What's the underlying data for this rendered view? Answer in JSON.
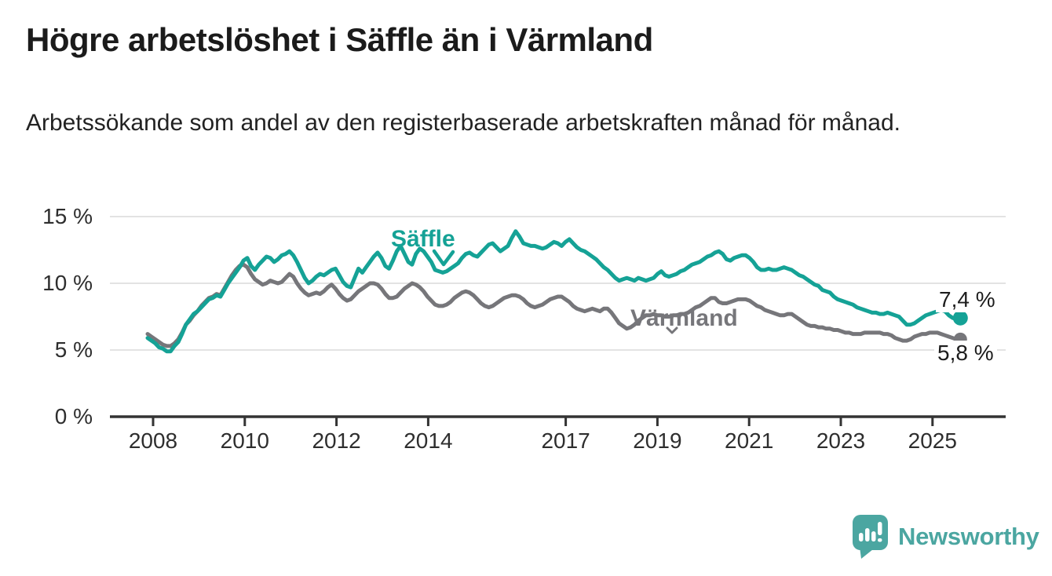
{
  "header": {
    "title": "Högre arbetslöshet i Säffle än i Värmland",
    "subtitle": "Arbetssökande som andel av den registerbaserade arbetskraften månad för månad."
  },
  "chart_data": {
    "type": "line",
    "unit": "%",
    "x_start_year": 2008,
    "x_start_month": 1,
    "x_interval": "monthly",
    "x_end_label": "2025",
    "ylim": [
      0,
      15.5
    ],
    "grid": "horizontal",
    "legend_position": "inline-labels",
    "y_ticks": [
      {
        "value": 0,
        "label": "0 %"
      },
      {
        "value": 5,
        "label": "5 %"
      },
      {
        "value": 10,
        "label": "10 %"
      },
      {
        "value": 15,
        "label": "15 %"
      }
    ],
    "x_ticks": [
      {
        "year": 2008,
        "label": "2008"
      },
      {
        "year": 2010,
        "label": "2010"
      },
      {
        "year": 2012,
        "label": "2012"
      },
      {
        "year": 2014,
        "label": "2014"
      },
      {
        "year": 2017,
        "label": "2017"
      },
      {
        "year": 2019,
        "label": "2019"
      },
      {
        "year": 2021,
        "label": "2021"
      },
      {
        "year": 2023,
        "label": "2023"
      },
      {
        "year": 2025,
        "label": "2025"
      }
    ],
    "series": [
      {
        "name": "Säffle",
        "color": "#15a296",
        "end_value": 7.4,
        "end_label": "7,4 %",
        "dot_radius": 9.5,
        "values": [
          5.9,
          5.7,
          5.5,
          5.2,
          5.1,
          4.9,
          4.9,
          5.3,
          5.6,
          6.2,
          6.9,
          7.3,
          7.7,
          7.9,
          8.2,
          8.5,
          8.8,
          8.9,
          9.1,
          9.0,
          9.5,
          10.0,
          10.4,
          10.8,
          11.2,
          11.7,
          11.9,
          11.3,
          11.0,
          11.4,
          11.7,
          12.0,
          11.9,
          11.6,
          11.8,
          12.1,
          12.2,
          12.4,
          12.1,
          11.6,
          11.0,
          10.4,
          10.0,
          10.2,
          10.5,
          10.7,
          10.6,
          10.8,
          11.0,
          11.1,
          10.6,
          10.1,
          9.8,
          9.7,
          10.4,
          11.1,
          10.8,
          11.2,
          11.6,
          12.0,
          12.3,
          11.9,
          11.3,
          11.1,
          11.7,
          12.4,
          12.8,
          12.2,
          11.6,
          11.4,
          12.2,
          12.6,
          12.4,
          12.0,
          11.6,
          11.0,
          10.9,
          10.8,
          10.9,
          11.1,
          11.3,
          11.5,
          11.9,
          12.2,
          12.3,
          12.1,
          12.0,
          12.3,
          12.6,
          12.9,
          13.0,
          12.7,
          12.4,
          12.6,
          12.8,
          13.4,
          13.9,
          13.5,
          13.0,
          12.9,
          12.8,
          12.8,
          12.7,
          12.6,
          12.7,
          12.9,
          13.1,
          13.0,
          12.8,
          13.1,
          13.3,
          13.0,
          12.7,
          12.5,
          12.4,
          12.2,
          12.0,
          11.8,
          11.5,
          11.2,
          11.0,
          10.7,
          10.4,
          10.2,
          10.3,
          10.4,
          10.3,
          10.2,
          10.4,
          10.3,
          10.2,
          10.3,
          10.4,
          10.7,
          10.9,
          10.6,
          10.5,
          10.6,
          10.7,
          10.9,
          11.0,
          11.2,
          11.4,
          11.5,
          11.6,
          11.8,
          12.0,
          12.1,
          12.3,
          12.4,
          12.2,
          11.8,
          11.7,
          11.9,
          12.0,
          12.1,
          12.1,
          11.9,
          11.6,
          11.2,
          11.0,
          11.0,
          11.1,
          11.0,
          11.0,
          11.1,
          11.2,
          11.1,
          11.0,
          10.8,
          10.6,
          10.5,
          10.3,
          10.1,
          9.9,
          9.8,
          9.5,
          9.4,
          9.3,
          9.0,
          8.8,
          8.7,
          8.6,
          8.5,
          8.4,
          8.2,
          8.1,
          8.0,
          7.9,
          7.8,
          7.8,
          7.7,
          7.7,
          7.8,
          7.7,
          7.6,
          7.5,
          7.2,
          6.9,
          6.9,
          7.0,
          7.2,
          7.4,
          7.6,
          7.7,
          7.8,
          7.9,
          8.0,
          7.9,
          7.6,
          7.4,
          7.3,
          7.4
        ]
      },
      {
        "name": "Värmland",
        "color": "#76767a",
        "end_value": 5.8,
        "end_label": "5,8 %",
        "dot_radius": 8.5,
        "values": [
          6.2,
          6.0,
          5.8,
          5.6,
          5.4,
          5.3,
          5.3,
          5.5,
          5.8,
          6.3,
          6.9,
          7.2,
          7.6,
          7.9,
          8.3,
          8.6,
          8.9,
          9.0,
          9.2,
          9.1,
          9.6,
          10.1,
          10.6,
          11.0,
          11.3,
          11.4,
          11.2,
          10.7,
          10.3,
          10.1,
          9.9,
          10.0,
          10.2,
          10.1,
          10.0,
          10.1,
          10.4,
          10.7,
          10.5,
          10.0,
          9.6,
          9.3,
          9.1,
          9.2,
          9.3,
          9.2,
          9.4,
          9.7,
          9.9,
          9.6,
          9.2,
          8.9,
          8.7,
          8.8,
          9.1,
          9.4,
          9.6,
          9.8,
          10.0,
          10.0,
          9.9,
          9.6,
          9.2,
          8.9,
          8.9,
          9.0,
          9.3,
          9.6,
          9.8,
          10.0,
          9.9,
          9.7,
          9.4,
          9.0,
          8.7,
          8.4,
          8.3,
          8.3,
          8.4,
          8.6,
          8.9,
          9.1,
          9.3,
          9.4,
          9.3,
          9.1,
          8.8,
          8.5,
          8.3,
          8.2,
          8.3,
          8.5,
          8.7,
          8.9,
          9.0,
          9.1,
          9.1,
          9.0,
          8.8,
          8.5,
          8.3,
          8.2,
          8.3,
          8.4,
          8.6,
          8.8,
          8.9,
          9.0,
          9.0,
          8.8,
          8.6,
          8.3,
          8.1,
          8.0,
          7.9,
          8.0,
          8.1,
          8.0,
          7.9,
          8.1,
          8.1,
          7.8,
          7.4,
          7.0,
          6.8,
          6.6,
          6.7,
          6.9,
          7.2,
          7.4,
          7.6,
          7.6,
          7.7,
          7.6,
          7.6,
          7.5,
          7.5,
          7.6,
          7.6,
          7.7,
          7.7,
          7.8,
          8.0,
          8.2,
          8.3,
          8.5,
          8.7,
          8.9,
          8.9,
          8.6,
          8.5,
          8.5,
          8.6,
          8.7,
          8.8,
          8.8,
          8.8,
          8.7,
          8.5,
          8.3,
          8.2,
          8.0,
          7.9,
          7.8,
          7.7,
          7.6,
          7.6,
          7.7,
          7.7,
          7.5,
          7.3,
          7.1,
          6.9,
          6.8,
          6.8,
          6.7,
          6.7,
          6.6,
          6.6,
          6.5,
          6.5,
          6.4,
          6.3,
          6.3,
          6.2,
          6.2,
          6.2,
          6.3,
          6.3,
          6.3,
          6.3,
          6.3,
          6.2,
          6.2,
          6.1,
          5.9,
          5.8,
          5.7,
          5.7,
          5.8,
          6.0,
          6.1,
          6.2,
          6.2,
          6.3,
          6.3,
          6.3,
          6.2,
          6.1,
          6.0,
          5.9,
          5.8,
          5.8
        ]
      }
    ]
  },
  "colors": {
    "saffle_line": "#15a296",
    "varmland_line": "#76767a",
    "gridline": "#dadada",
    "axis": "#333333",
    "logo_teal": "#4ba6a1"
  },
  "footer": {
    "brand": "Newsworthy"
  }
}
